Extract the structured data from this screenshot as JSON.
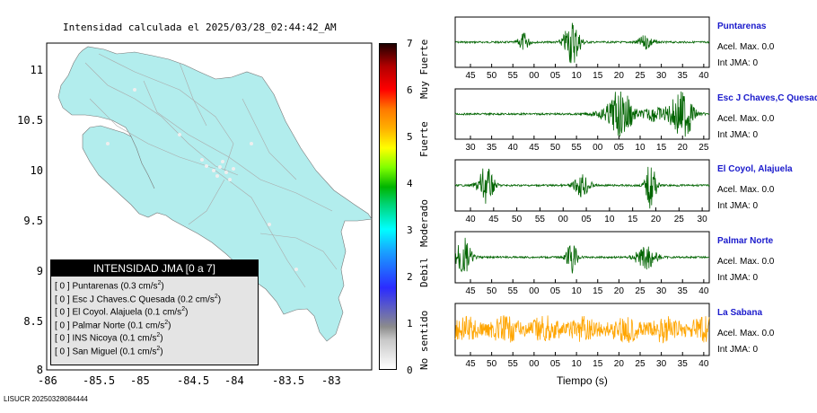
{
  "map": {
    "title": "Intensidad calculada el 2025/03/28_02:44:42_AM",
    "lon_ticks": [
      "-86",
      "-85.5",
      "-85",
      "-84.5",
      "-84",
      "-83.5",
      "-83"
    ],
    "lat_ticks": [
      "11",
      "10.5",
      "10",
      "9.5",
      "9",
      "8.5",
      "8"
    ]
  },
  "legend": {
    "title": "INTENSIDAD JMA [0 a 7]",
    "rows": [
      {
        "level": "[ 0 ]",
        "name": "Puntarenas",
        "accel": "(0.3 cm/s",
        "sup": "2",
        "close": ")"
      },
      {
        "level": "[ 0 ]",
        "name": "Esc J Chaves.C Quesada",
        "accel": "(0.2 cm/s",
        "sup": "2",
        "close": ")"
      },
      {
        "level": "[ 0 ]",
        "name": "El Coyol. Alajuela",
        "accel": "(0.1 cm/s",
        "sup": "2",
        "close": ")"
      },
      {
        "level": "[ 0 ]",
        "name": "Palmar Norte",
        "accel": "(0.1 cm/s",
        "sup": "2",
        "close": ")"
      },
      {
        "level": "[ 0 ]",
        "name": "INS Nicoya",
        "accel": "(0.1 cm/s",
        "sup": "2",
        "close": ")"
      },
      {
        "level": "[ 0 ]",
        "name": "San Miguel",
        "accel": "(0.1 cm/s",
        "sup": "2",
        "close": ")"
      }
    ]
  },
  "colorbar": {
    "ticks": [
      "7",
      "6",
      "5",
      "4",
      "3",
      "2",
      "1",
      "0"
    ],
    "categories": [
      "Muy Fuerte",
      "Fuerte",
      "Moderado",
      "Debil",
      "No sentido"
    ]
  },
  "stations": [
    {
      "name": "Puntarenas",
      "accel": "Acel. Max. 0.0",
      "jma": "Int JMA: 0",
      "color": "#006400",
      "ticks": [
        "45",
        "50",
        "55",
        "00",
        "05",
        "10",
        "15",
        "20",
        "25",
        "30",
        "35",
        "40"
      ],
      "bursts": [
        [
          0.27,
          0.4,
          0.02
        ],
        [
          0.46,
          1.0,
          0.03
        ],
        [
          0.75,
          0.3,
          0.03
        ]
      ]
    },
    {
      "name": "Esc J Chaves,C Quesada",
      "accel": "Acel. Max. 0.0",
      "jma": "Int JMA: 0",
      "color": "#006400",
      "ticks": [
        "30",
        "35",
        "40",
        "45",
        "50",
        "55",
        "00",
        "05",
        "10",
        "15",
        "20",
        "25"
      ],
      "bursts": [
        [
          0.64,
          0.6,
          0.06
        ],
        [
          0.66,
          0.9,
          0.03
        ],
        [
          0.78,
          0.3,
          0.04
        ],
        [
          0.88,
          0.6,
          0.05
        ],
        [
          0.9,
          0.9,
          0.03
        ]
      ]
    },
    {
      "name": "El Coyol, Alajuela",
      "accel": "Acel. Max. 0.0",
      "jma": "Int JMA: 0",
      "color": "#006400",
      "ticks": [
        "40",
        "45",
        "50",
        "55",
        "00",
        "05",
        "10",
        "15",
        "20",
        "25",
        "30"
      ],
      "bursts": [
        [
          0.12,
          0.8,
          0.03
        ],
        [
          0.5,
          0.5,
          0.03
        ],
        [
          0.77,
          1.0,
          0.02
        ]
      ]
    },
    {
      "name": "Palmar Norte",
      "accel": "Acel. Max. 0.0",
      "jma": "Int JMA: 0",
      "color": "#006400",
      "ticks": [
        "45",
        "50",
        "55",
        "00",
        "05",
        "10",
        "15",
        "20",
        "25",
        "30",
        "35",
        "40"
      ],
      "bursts": [
        [
          0.03,
          0.9,
          0.03
        ],
        [
          0.46,
          0.7,
          0.02
        ],
        [
          0.75,
          0.5,
          0.04
        ]
      ]
    },
    {
      "name": "La Sabana",
      "accel": "Acel. Max. 0.0",
      "jma": "Int JMA: 0",
      "color": "#ffa500",
      "ticks": [
        "45",
        "50",
        "55",
        "00",
        "05",
        "10",
        "15",
        "20",
        "25",
        "30",
        "35",
        "40"
      ],
      "bursts": []
    }
  ],
  "xlabel": "Tiempo (s)",
  "footer": "LISUCR 20250328084444"
}
